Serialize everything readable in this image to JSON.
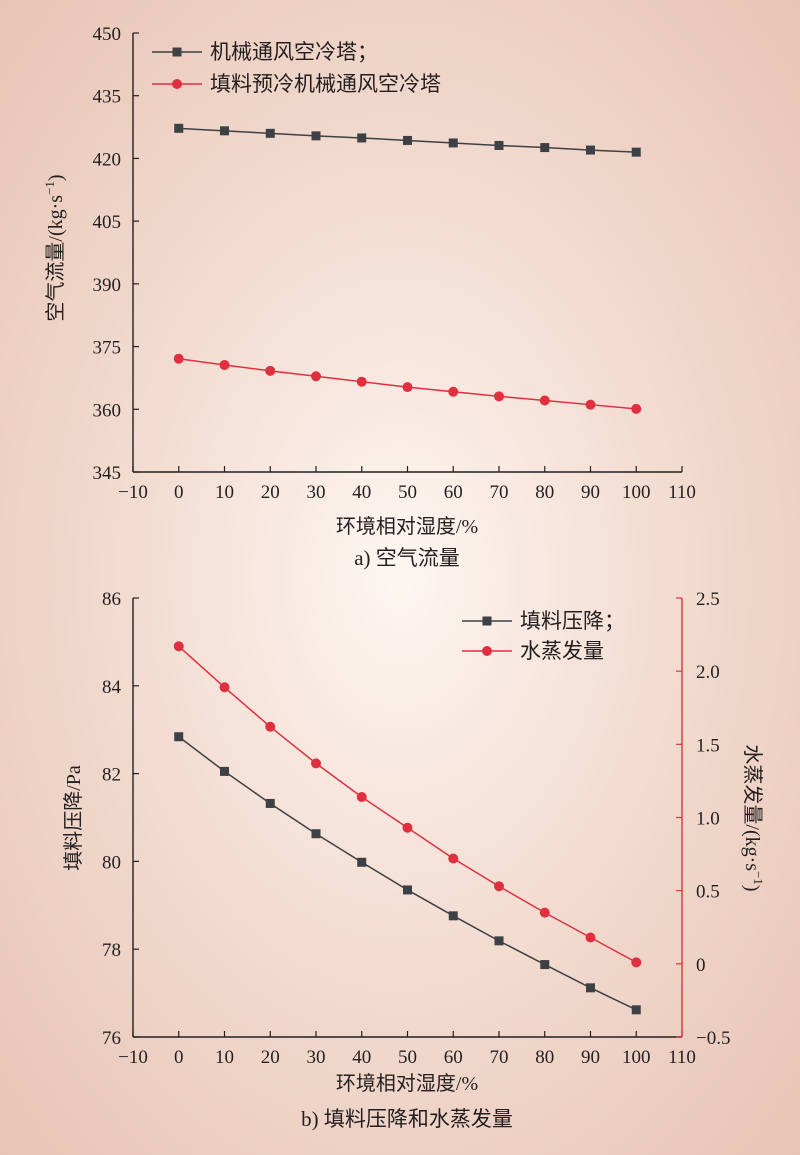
{
  "colors": {
    "series_dark": "#3d4045",
    "series_red": "#e0303f",
    "right_axis": "#e0303f",
    "axis": "#231f20"
  },
  "chart_data": [
    {
      "type": "line",
      "caption": "a) 空气流量",
      "xlabel": "环境相对湿度/%",
      "ylabel": "空气流量/(kg·s",
      "ylabel_sup": "−1",
      "ylabel_close": ")",
      "xlim": [
        -10,
        110
      ],
      "ylim": [
        345,
        450
      ],
      "xticks": [
        -10,
        0,
        10,
        20,
        30,
        40,
        50,
        60,
        70,
        80,
        90,
        100,
        110
      ],
      "xtick_labels": [
        "−10",
        "0",
        "10",
        "20",
        "30",
        "40",
        "50",
        "60",
        "70",
        "80",
        "90",
        "100",
        "110"
      ],
      "yticks": [
        345,
        360,
        375,
        390,
        405,
        420,
        435,
        450
      ],
      "ytick_labels": [
        "345",
        "360",
        "375",
        "390",
        "405",
        "420",
        "435",
        "450"
      ],
      "legend_position": "top-left",
      "x": [
        0,
        10,
        20,
        30,
        40,
        50,
        60,
        70,
        80,
        90,
        100
      ],
      "series": [
        {
          "name": "机械通风空冷塔；",
          "marker": "square",
          "color": "#3d4045",
          "values": [
            427.2,
            426.6,
            426.0,
            425.4,
            424.9,
            424.3,
            423.7,
            423.1,
            422.6,
            422.0,
            421.5
          ]
        },
        {
          "name": "填料预冷机械通风空冷塔",
          "marker": "circle",
          "color": "#e0303f",
          "values": [
            372.1,
            370.6,
            369.2,
            367.9,
            366.6,
            365.3,
            364.2,
            363.1,
            362.1,
            361.1,
            360.1
          ]
        }
      ]
    },
    {
      "type": "line",
      "caption": "b) 填料压降和水蒸发量",
      "xlabel": "环境相对湿度/%",
      "ylabel": "填料压降/Pa",
      "y2label": "水蒸发量/(kg·s",
      "y2label_sup": "−1",
      "y2label_close": ")",
      "xlim": [
        -10,
        110
      ],
      "ylim": [
        76,
        86
      ],
      "y2lim": [
        -0.5,
        2.5
      ],
      "xticks": [
        -10,
        0,
        10,
        20,
        30,
        40,
        50,
        60,
        70,
        80,
        90,
        100,
        110
      ],
      "xtick_labels": [
        "−10",
        "0",
        "10",
        "20",
        "30",
        "40",
        "50",
        "60",
        "70",
        "80",
        "90",
        "100",
        "110"
      ],
      "yticks": [
        76,
        78,
        80,
        82,
        84,
        86
      ],
      "ytick_labels": [
        "76",
        "78",
        "80",
        "82",
        "84",
        "86"
      ],
      "y2ticks": [
        -0.5,
        0,
        0.5,
        1.0,
        1.5,
        2.0,
        2.5
      ],
      "y2tick_labels": [
        "−0.5",
        "0",
        "0.5",
        "1.0",
        "1.5",
        "2.0",
        "2.5"
      ],
      "legend_position": "top-right",
      "x": [
        0,
        10,
        20,
        30,
        40,
        50,
        60,
        70,
        80,
        90,
        100
      ],
      "series": [
        {
          "name": "填料压降；",
          "axis": "left",
          "marker": "square",
          "color": "#3d4045",
          "values": [
            82.84,
            82.05,
            81.32,
            80.63,
            79.98,
            79.35,
            78.76,
            78.19,
            77.65,
            77.12,
            76.62
          ]
        },
        {
          "name": "水蒸发量",
          "axis": "right",
          "marker": "circle",
          "color": "#e0303f",
          "values": [
            2.17,
            1.89,
            1.62,
            1.37,
            1.14,
            0.93,
            0.72,
            0.53,
            0.35,
            0.18,
            0.01
          ]
        }
      ]
    }
  ]
}
